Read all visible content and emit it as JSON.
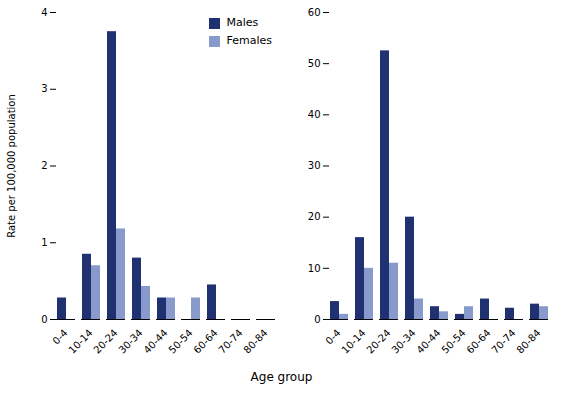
{
  "chart_data": [
    {
      "type": "bar",
      "ylabel": "Rate per 100,000 population",
      "xlabel": "Age group",
      "categories": [
        "0-4",
        "10-14",
        "20-24",
        "30-34",
        "40-44",
        "50-54",
        "60-64",
        "70-74",
        "80-84"
      ],
      "series": [
        {
          "name": "Males",
          "color": "#1F3170",
          "values": [
            0.28,
            0.85,
            3.75,
            0.8,
            0.28,
            0.0,
            0.45,
            0.0,
            0.0
          ]
        },
        {
          "name": "Females",
          "color": "#8899CC",
          "values": [
            0.0,
            0.7,
            1.18,
            0.43,
            0.28,
            0.28,
            0.0,
            0.0,
            0.0
          ]
        }
      ],
      "ylim": [
        0,
        4
      ],
      "yticks": [
        0,
        1,
        2,
        3,
        4
      ],
      "legend": "upper right"
    },
    {
      "type": "bar",
      "categories": [
        "0-4",
        "10-14",
        "20-24",
        "30-34",
        "40-44",
        "50-54",
        "60-64",
        "70-74",
        "80-84"
      ],
      "series": [
        {
          "name": "Males",
          "color": "#1F3170",
          "values": [
            3.5,
            16.0,
            52.5,
            20.0,
            2.5,
            1.0,
            4.0,
            2.2,
            3.0
          ]
        },
        {
          "name": "Females",
          "color": "#8899CC",
          "values": [
            1.0,
            10.0,
            11.0,
            4.0,
            1.5,
            2.5,
            0.0,
            0.0,
            2.5
          ]
        }
      ],
      "ylim": [
        0,
        60
      ],
      "yticks": [
        0,
        10,
        20,
        30,
        40,
        50,
        60
      ]
    }
  ]
}
